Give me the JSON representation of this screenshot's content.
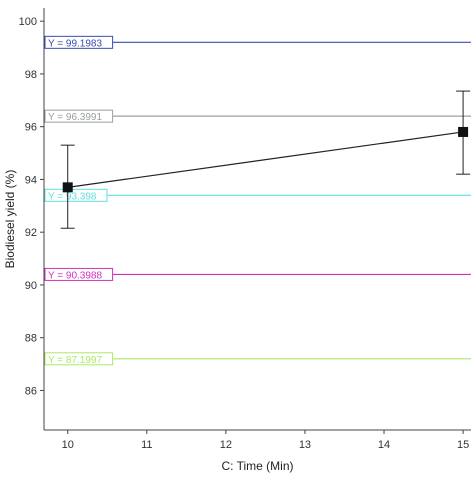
{
  "chart_data": {
    "type": "line",
    "xlabel": "C: Time (Min)",
    "ylabel": "Biodiesel yield (%)",
    "xlim": [
      9.7,
      15.1
    ],
    "ylim": [
      84.5,
      100.5
    ],
    "x_ticks": [
      10,
      11,
      12,
      13,
      14,
      15
    ],
    "y_ticks": [
      86,
      88,
      90,
      92,
      94,
      96,
      98,
      100
    ],
    "grid": false,
    "series": [
      {
        "x": [
          10,
          15
        ],
        "y": [
          93.7,
          95.8
        ],
        "error_low": [
          92.15,
          94.2
        ],
        "error_high": [
          95.3,
          97.35
        ],
        "color": "#222222",
        "marker": "square"
      }
    ],
    "reference_lines": [
      {
        "label": "Y = 99.1983",
        "y": 99.1983,
        "color": "#3a4db5"
      },
      {
        "label": "Y = 96.3991",
        "y": 96.3991,
        "color": "#9aa0a0"
      },
      {
        "label": "Y = 93.398",
        "y": 93.398,
        "color": "#5fe0e0"
      },
      {
        "label": "Y = 90.3988",
        "y": 90.3988,
        "color": "#cc33bb"
      },
      {
        "label": "Y = 87.1997",
        "y": 87.1997,
        "color": "#aaea66"
      }
    ]
  }
}
